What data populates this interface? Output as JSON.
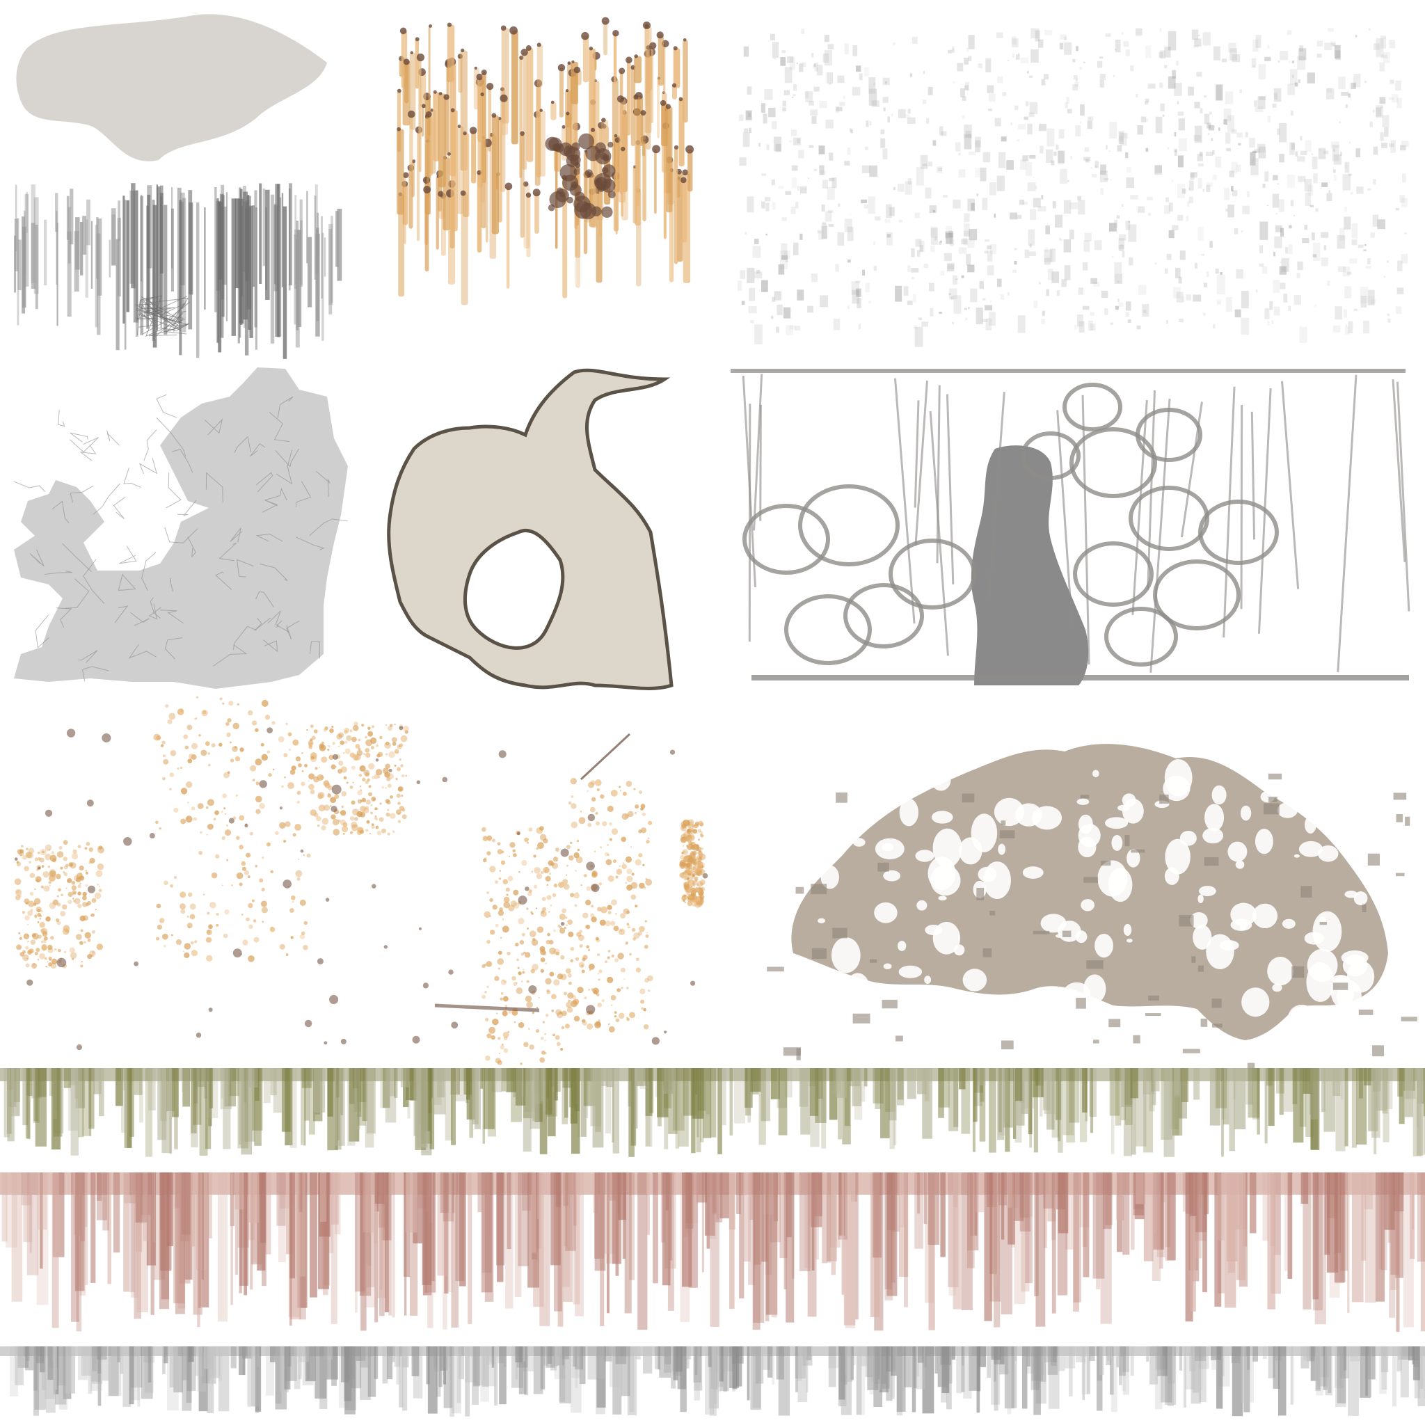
{
  "colors": {
    "background": "#ffffff",
    "plaster_light": "#d8d4cf",
    "plaster_mid": "#c9c6c2",
    "plaster_grey": "#cfcfcf",
    "beige_chip": "#ddd6cb",
    "chip_edge": "#5a5147",
    "grime_dark": "#6f6f6f",
    "grime_soft": "#9a9a9a",
    "stain_light": "#c4c4c4",
    "rust_orange": "#d9a15a",
    "rust_light": "#e8b678",
    "rust_dark": "#6b4a3a",
    "crack_grey": "#8e8c88",
    "crack_fill": "#8a8a8a",
    "peel_paint": "#b9ada0",
    "peel_shadow": "#8f857a",
    "moss_green": "#7e8044",
    "moss_light": "#b4b49a",
    "red_stain": "#b47a6f",
    "red_stain_light": "#d8b3aa",
    "grey_drip": "#8d8d8d"
  },
  "decals": [
    {
      "id": "plaster-chunk",
      "icon": "plaster-chunk-icon"
    },
    {
      "id": "grime-drips",
      "icon": "grime-drips-icon"
    },
    {
      "id": "rust-streaks",
      "icon": "rust-streaks-icon"
    },
    {
      "id": "dirt-smudge",
      "icon": "dirt-smudge-icon"
    },
    {
      "id": "cracked-plaster",
      "icon": "cracked-plaster-icon"
    },
    {
      "id": "chipped-plaster-hole",
      "icon": "chipped-plaster-hole-icon"
    },
    {
      "id": "cracked-concrete",
      "icon": "cracked-concrete-icon"
    },
    {
      "id": "rust-spots",
      "icon": "rust-spots-icon"
    },
    {
      "id": "peeling-paint",
      "icon": "peeling-paint-icon"
    },
    {
      "id": "moss-strip",
      "icon": "moss-strip-icon"
    },
    {
      "id": "red-stain-strip",
      "icon": "red-stain-strip-icon"
    },
    {
      "id": "grey-drip-strip",
      "icon": "grey-drip-strip-icon"
    }
  ]
}
